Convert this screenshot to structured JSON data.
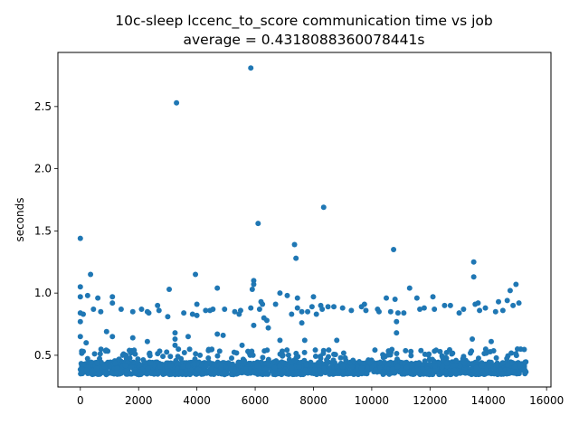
{
  "chart_data": {
    "type": "scatter",
    "title": "10c-sleep lccenc_to_score communication time vs job",
    "subtitle": "average = 0.4318088360078441s",
    "xlabel": "",
    "ylabel": "seconds",
    "xlim": [
      -770,
      16150
    ],
    "ylim": [
      0.245,
      2.935
    ],
    "xticks": [
      0,
      2000,
      4000,
      6000,
      8000,
      10000,
      12000,
      14000,
      16000
    ],
    "yticks": [
      0.5,
      1.0,
      1.5,
      2.0,
      2.5
    ],
    "xtick_labels": [
      "0",
      "2000",
      "4000",
      "6000",
      "8000",
      "10000",
      "12000",
      "14000",
      "16000"
    ],
    "ytick_labels": [
      "0.5",
      "1.0",
      "1.5",
      "2.0",
      "2.5"
    ],
    "grid": false,
    "marker_color": "#1f77b4",
    "job_count": 15300,
    "band": {
      "x_range": [
        0,
        15300
      ],
      "y_center": 0.395,
      "y_spread": 0.05
    },
    "outliers": [
      {
        "x": 0,
        "y": 1.44
      },
      {
        "x": 0,
        "y": 1.05
      },
      {
        "x": 0,
        "y": 0.97
      },
      {
        "x": 0,
        "y": 0.84
      },
      {
        "x": 0,
        "y": 0.77
      },
      {
        "x": 0,
        "y": 0.65
      },
      {
        "x": 100,
        "y": 0.83
      },
      {
        "x": 100,
        "y": 0.53
      },
      {
        "x": 200,
        "y": 0.6
      },
      {
        "x": 250,
        "y": 0.98
      },
      {
        "x": 350,
        "y": 1.15
      },
      {
        "x": 450,
        "y": 0.87
      },
      {
        "x": 600,
        "y": 0.96
      },
      {
        "x": 700,
        "y": 0.85
      },
      {
        "x": 900,
        "y": 0.69
      },
      {
        "x": 1100,
        "y": 0.97
      },
      {
        "x": 1100,
        "y": 0.65
      },
      {
        "x": 1100,
        "y": 0.92
      },
      {
        "x": 1400,
        "y": 0.87
      },
      {
        "x": 1800,
        "y": 0.85
      },
      {
        "x": 1800,
        "y": 0.64
      },
      {
        "x": 2100,
        "y": 0.87
      },
      {
        "x": 2300,
        "y": 0.85
      },
      {
        "x": 2350,
        "y": 0.84
      },
      {
        "x": 2300,
        "y": 0.61
      },
      {
        "x": 2650,
        "y": 0.9
      },
      {
        "x": 2700,
        "y": 0.86
      },
      {
        "x": 3000,
        "y": 0.81
      },
      {
        "x": 3050,
        "y": 1.03
      },
      {
        "x": 3300,
        "y": 2.53
      },
      {
        "x": 3250,
        "y": 0.68
      },
      {
        "x": 3250,
        "y": 0.63
      },
      {
        "x": 3250,
        "y": 0.58
      },
      {
        "x": 3550,
        "y": 0.84
      },
      {
        "x": 3700,
        "y": 0.65
      },
      {
        "x": 3850,
        "y": 0.83
      },
      {
        "x": 3950,
        "y": 1.15
      },
      {
        "x": 4000,
        "y": 0.82
      },
      {
        "x": 4000,
        "y": 0.91
      },
      {
        "x": 4300,
        "y": 0.86
      },
      {
        "x": 4450,
        "y": 0.86
      },
      {
        "x": 4550,
        "y": 0.87
      },
      {
        "x": 4700,
        "y": 1.04
      },
      {
        "x": 4700,
        "y": 0.67
      },
      {
        "x": 4900,
        "y": 0.66
      },
      {
        "x": 4950,
        "y": 0.87
      },
      {
        "x": 5300,
        "y": 0.85
      },
      {
        "x": 5450,
        "y": 0.83
      },
      {
        "x": 5500,
        "y": 0.86
      },
      {
        "x": 5550,
        "y": 0.58
      },
      {
        "x": 5850,
        "y": 2.81
      },
      {
        "x": 5850,
        "y": 0.88
      },
      {
        "x": 5900,
        "y": 1.03
      },
      {
        "x": 5950,
        "y": 1.1
      },
      {
        "x": 5950,
        "y": 1.07
      },
      {
        "x": 5950,
        "y": 0.74
      },
      {
        "x": 6100,
        "y": 1.56
      },
      {
        "x": 6150,
        "y": 0.87
      },
      {
        "x": 6200,
        "y": 0.93
      },
      {
        "x": 6250,
        "y": 0.91
      },
      {
        "x": 6300,
        "y": 0.8
      },
      {
        "x": 6400,
        "y": 0.78
      },
      {
        "x": 6450,
        "y": 0.72
      },
      {
        "x": 6700,
        "y": 0.91
      },
      {
        "x": 6850,
        "y": 1.0
      },
      {
        "x": 6850,
        "y": 0.62
      },
      {
        "x": 7100,
        "y": 0.98
      },
      {
        "x": 7250,
        "y": 0.83
      },
      {
        "x": 7350,
        "y": 1.39
      },
      {
        "x": 7400,
        "y": 1.28
      },
      {
        "x": 7450,
        "y": 0.96
      },
      {
        "x": 7450,
        "y": 0.88
      },
      {
        "x": 7600,
        "y": 0.85
      },
      {
        "x": 7600,
        "y": 0.76
      },
      {
        "x": 7700,
        "y": 0.62
      },
      {
        "x": 7800,
        "y": 0.85
      },
      {
        "x": 7950,
        "y": 0.89
      },
      {
        "x": 8000,
        "y": 0.97
      },
      {
        "x": 8100,
        "y": 0.83
      },
      {
        "x": 8250,
        "y": 0.9
      },
      {
        "x": 8300,
        "y": 0.87
      },
      {
        "x": 8350,
        "y": 1.69
      },
      {
        "x": 8500,
        "y": 0.89
      },
      {
        "x": 8700,
        "y": 0.89
      },
      {
        "x": 8800,
        "y": 0.62
      },
      {
        "x": 9000,
        "y": 0.88
      },
      {
        "x": 9300,
        "y": 0.86
      },
      {
        "x": 9650,
        "y": 0.89
      },
      {
        "x": 9750,
        "y": 0.91
      },
      {
        "x": 9800,
        "y": 0.86
      },
      {
        "x": 10200,
        "y": 0.87
      },
      {
        "x": 10250,
        "y": 0.85
      },
      {
        "x": 10500,
        "y": 0.96
      },
      {
        "x": 10650,
        "y": 0.85
      },
      {
        "x": 10750,
        "y": 1.35
      },
      {
        "x": 10800,
        "y": 0.95
      },
      {
        "x": 10850,
        "y": 0.77
      },
      {
        "x": 10900,
        "y": 0.84
      },
      {
        "x": 10850,
        "y": 0.68
      },
      {
        "x": 11300,
        "y": 1.04
      },
      {
        "x": 11100,
        "y": 0.84
      },
      {
        "x": 11550,
        "y": 0.96
      },
      {
        "x": 11650,
        "y": 0.87
      },
      {
        "x": 11800,
        "y": 0.88
      },
      {
        "x": 12100,
        "y": 0.97
      },
      {
        "x": 12150,
        "y": 0.87
      },
      {
        "x": 12500,
        "y": 0.9
      },
      {
        "x": 12700,
        "y": 0.9
      },
      {
        "x": 13000,
        "y": 0.84
      },
      {
        "x": 13150,
        "y": 0.87
      },
      {
        "x": 13500,
        "y": 1.25
      },
      {
        "x": 13500,
        "y": 1.13
      },
      {
        "x": 13550,
        "y": 0.91
      },
      {
        "x": 13650,
        "y": 0.92
      },
      {
        "x": 13700,
        "y": 0.86
      },
      {
        "x": 13900,
        "y": 0.88
      },
      {
        "x": 13450,
        "y": 0.63
      },
      {
        "x": 14100,
        "y": 0.61
      },
      {
        "x": 14250,
        "y": 0.85
      },
      {
        "x": 14350,
        "y": 0.93
      },
      {
        "x": 14500,
        "y": 0.86
      },
      {
        "x": 14650,
        "y": 0.94
      },
      {
        "x": 14750,
        "y": 1.02
      },
      {
        "x": 14850,
        "y": 0.9
      },
      {
        "x": 14950,
        "y": 1.07
      },
      {
        "x": 15050,
        "y": 0.92
      },
      {
        "x": 15000,
        "y": 0.55
      }
    ]
  }
}
